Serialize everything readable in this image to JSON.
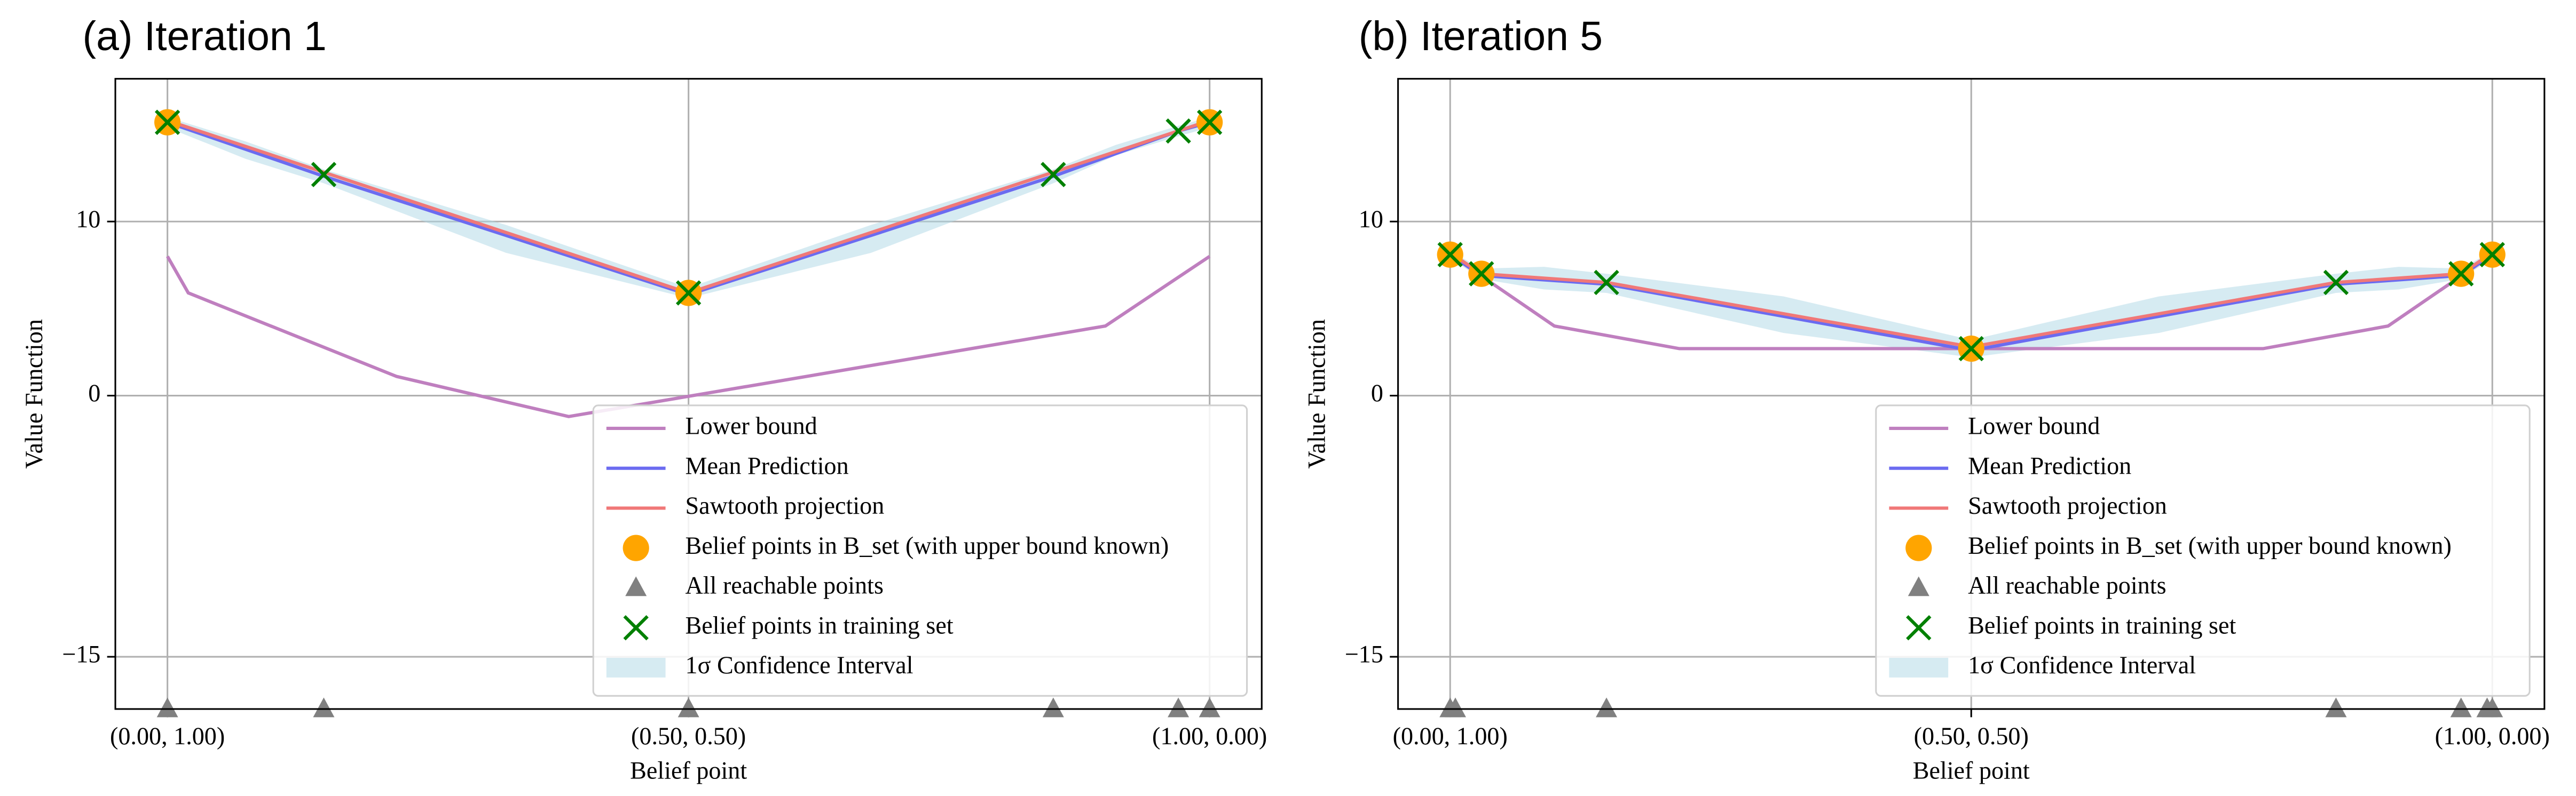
{
  "chart_data": [
    {
      "type": "line",
      "title": "(a) Iteration 1",
      "xlabel": "Belief point",
      "ylabel": "Value Function",
      "xlim": [
        -0.05,
        1.05
      ],
      "ylim": [
        -18,
        18.2
      ],
      "xticks": [
        {
          "value": 0,
          "label": "(0.00, 1.00)"
        },
        {
          "value": 0.5,
          "label": "(0.50, 0.50)"
        },
        {
          "value": 1,
          "label": "(1.00, 0.00)"
        }
      ],
      "yticks": [
        10,
        0,
        {
          "value": -15,
          "label": "−15"
        }
      ],
      "grid": true,
      "legend": "lower right",
      "series": [
        {
          "name": "Lower bound",
          "kind": "line",
          "color": "#bf7fbf",
          "x": [
            0,
            0.02,
            0.22,
            0.385,
            0.9,
            1
          ],
          "values": [
            8.0,
            5.9,
            1.1,
            -1.2,
            4.0,
            8.0
          ]
        },
        {
          "name": "Mean Prediction",
          "kind": "line",
          "color": "#6b6bf0",
          "x": [
            0,
            0.15,
            0.5,
            0.85,
            0.97,
            1
          ],
          "values": [
            15.7,
            12.6,
            5.8,
            12.6,
            15.2,
            15.7
          ]
        },
        {
          "name": "Sawtooth projection",
          "kind": "line",
          "color": "#f07878",
          "x": [
            0,
            0.5,
            1
          ],
          "values": [
            15.8,
            5.9,
            15.8
          ]
        },
        {
          "name": "Belief points in B_set (with upper bound known)",
          "kind": "scatter",
          "marker": "o",
          "color": "#ffa500",
          "x": [
            0,
            0.5,
            1
          ],
          "values": [
            15.7,
            5.9,
            15.7
          ]
        },
        {
          "name": "All reachable points",
          "kind": "scatter",
          "marker": "^",
          "color": "#808080",
          "x": [
            0,
            0.15,
            0.5,
            0.85,
            0.97,
            1
          ],
          "values": [
            -18,
            -18,
            -18,
            -18,
            -18,
            -18
          ]
        },
        {
          "name": "Belief points in training set",
          "kind": "scatter",
          "marker": "x",
          "color": "#008000",
          "x": [
            0,
            0.15,
            0.5,
            0.85,
            0.97,
            1
          ],
          "values": [
            15.7,
            12.7,
            5.9,
            12.7,
            15.2,
            15.7
          ]
        },
        {
          "name": "1σ Confidence Interval",
          "kind": "band",
          "color": "#add8e6",
          "x": [
            0,
            0.075,
            0.15,
            0.325,
            0.5,
            0.675,
            0.85,
            0.91,
            0.97,
            1
          ],
          "upper": [
            16.0,
            14.6,
            13.0,
            9.8,
            6.2,
            9.8,
            13.0,
            14.4,
            15.5,
            16.0
          ],
          "lower": [
            15.4,
            13.6,
            12.2,
            8.2,
            5.6,
            8.2,
            12.2,
            13.8,
            14.9,
            15.4
          ]
        }
      ]
    },
    {
      "type": "line",
      "title": "(b) Iteration 5",
      "xlabel": "Belief point",
      "ylabel": "Value Function",
      "xlim": [
        -0.05,
        1.05
      ],
      "ylim": [
        -18,
        18.2
      ],
      "xticks": [
        {
          "value": 0,
          "label": "(0.00, 1.00)"
        },
        {
          "value": 0.5,
          "label": "(0.50, 0.50)"
        },
        {
          "value": 1,
          "label": "(1.00, 0.00)"
        }
      ],
      "yticks": [
        10,
        0,
        {
          "value": -15,
          "label": "−15"
        }
      ],
      "grid": true,
      "legend": "lower right",
      "series": [
        {
          "name": "Lower bound",
          "kind": "line",
          "color": "#bf7fbf",
          "x": [
            0,
            0.1,
            0.22,
            0.78,
            0.9,
            1
          ],
          "values": [
            8.1,
            4.0,
            2.7,
            2.7,
            4.0,
            8.1
          ]
        },
        {
          "name": "Mean Prediction",
          "kind": "line",
          "color": "#6b6bf0",
          "x": [
            0,
            0.03,
            0.15,
            0.5,
            0.85,
            0.97,
            1
          ],
          "values": [
            8.1,
            6.9,
            6.4,
            2.6,
            6.4,
            6.9,
            8.1
          ]
        },
        {
          "name": "Sawtooth projection",
          "kind": "line",
          "color": "#f07878",
          "x": [
            0,
            0.03,
            0.15,
            0.5,
            0.85,
            0.97,
            1
          ],
          "values": [
            8.2,
            7.0,
            6.5,
            2.8,
            6.5,
            7.0,
            8.2
          ]
        },
        {
          "name": "Belief points in B_set (with upper bound known)",
          "kind": "scatter",
          "marker": "o",
          "color": "#ffa500",
          "x": [
            0,
            0.03,
            0.5,
            0.97,
            1
          ],
          "values": [
            8.1,
            7.0,
            2.7,
            7.0,
            8.1
          ]
        },
        {
          "name": "All reachable points",
          "kind": "scatter",
          "marker": "^",
          "color": "#808080",
          "x": [
            0,
            0.005,
            0.15,
            0.85,
            0.97,
            0.995,
            1
          ],
          "values": [
            -18,
            -18,
            -18,
            -18,
            -18,
            -18,
            -18
          ]
        },
        {
          "name": "Belief points in training set",
          "kind": "scatter",
          "marker": "x",
          "color": "#008000",
          "x": [
            0,
            0.03,
            0.15,
            0.5,
            0.85,
            0.97,
            1
          ],
          "values": [
            8.1,
            7.0,
            6.5,
            2.7,
            6.5,
            7.0,
            8.1
          ]
        },
        {
          "name": "1σ Confidence Interval",
          "kind": "band",
          "color": "#add8e6",
          "x": [
            0,
            0.03,
            0.09,
            0.15,
            0.32,
            0.5,
            0.68,
            0.85,
            0.91,
            0.97,
            1
          ],
          "upper": [
            8.3,
            7.3,
            7.4,
            7.0,
            5.7,
            3.2,
            5.7,
            7.0,
            7.4,
            7.3,
            8.3
          ],
          "lower": [
            7.9,
            6.7,
            6.1,
            5.9,
            3.6,
            2.2,
            3.6,
            5.9,
            6.1,
            6.7,
            7.9
          ]
        }
      ]
    }
  ]
}
